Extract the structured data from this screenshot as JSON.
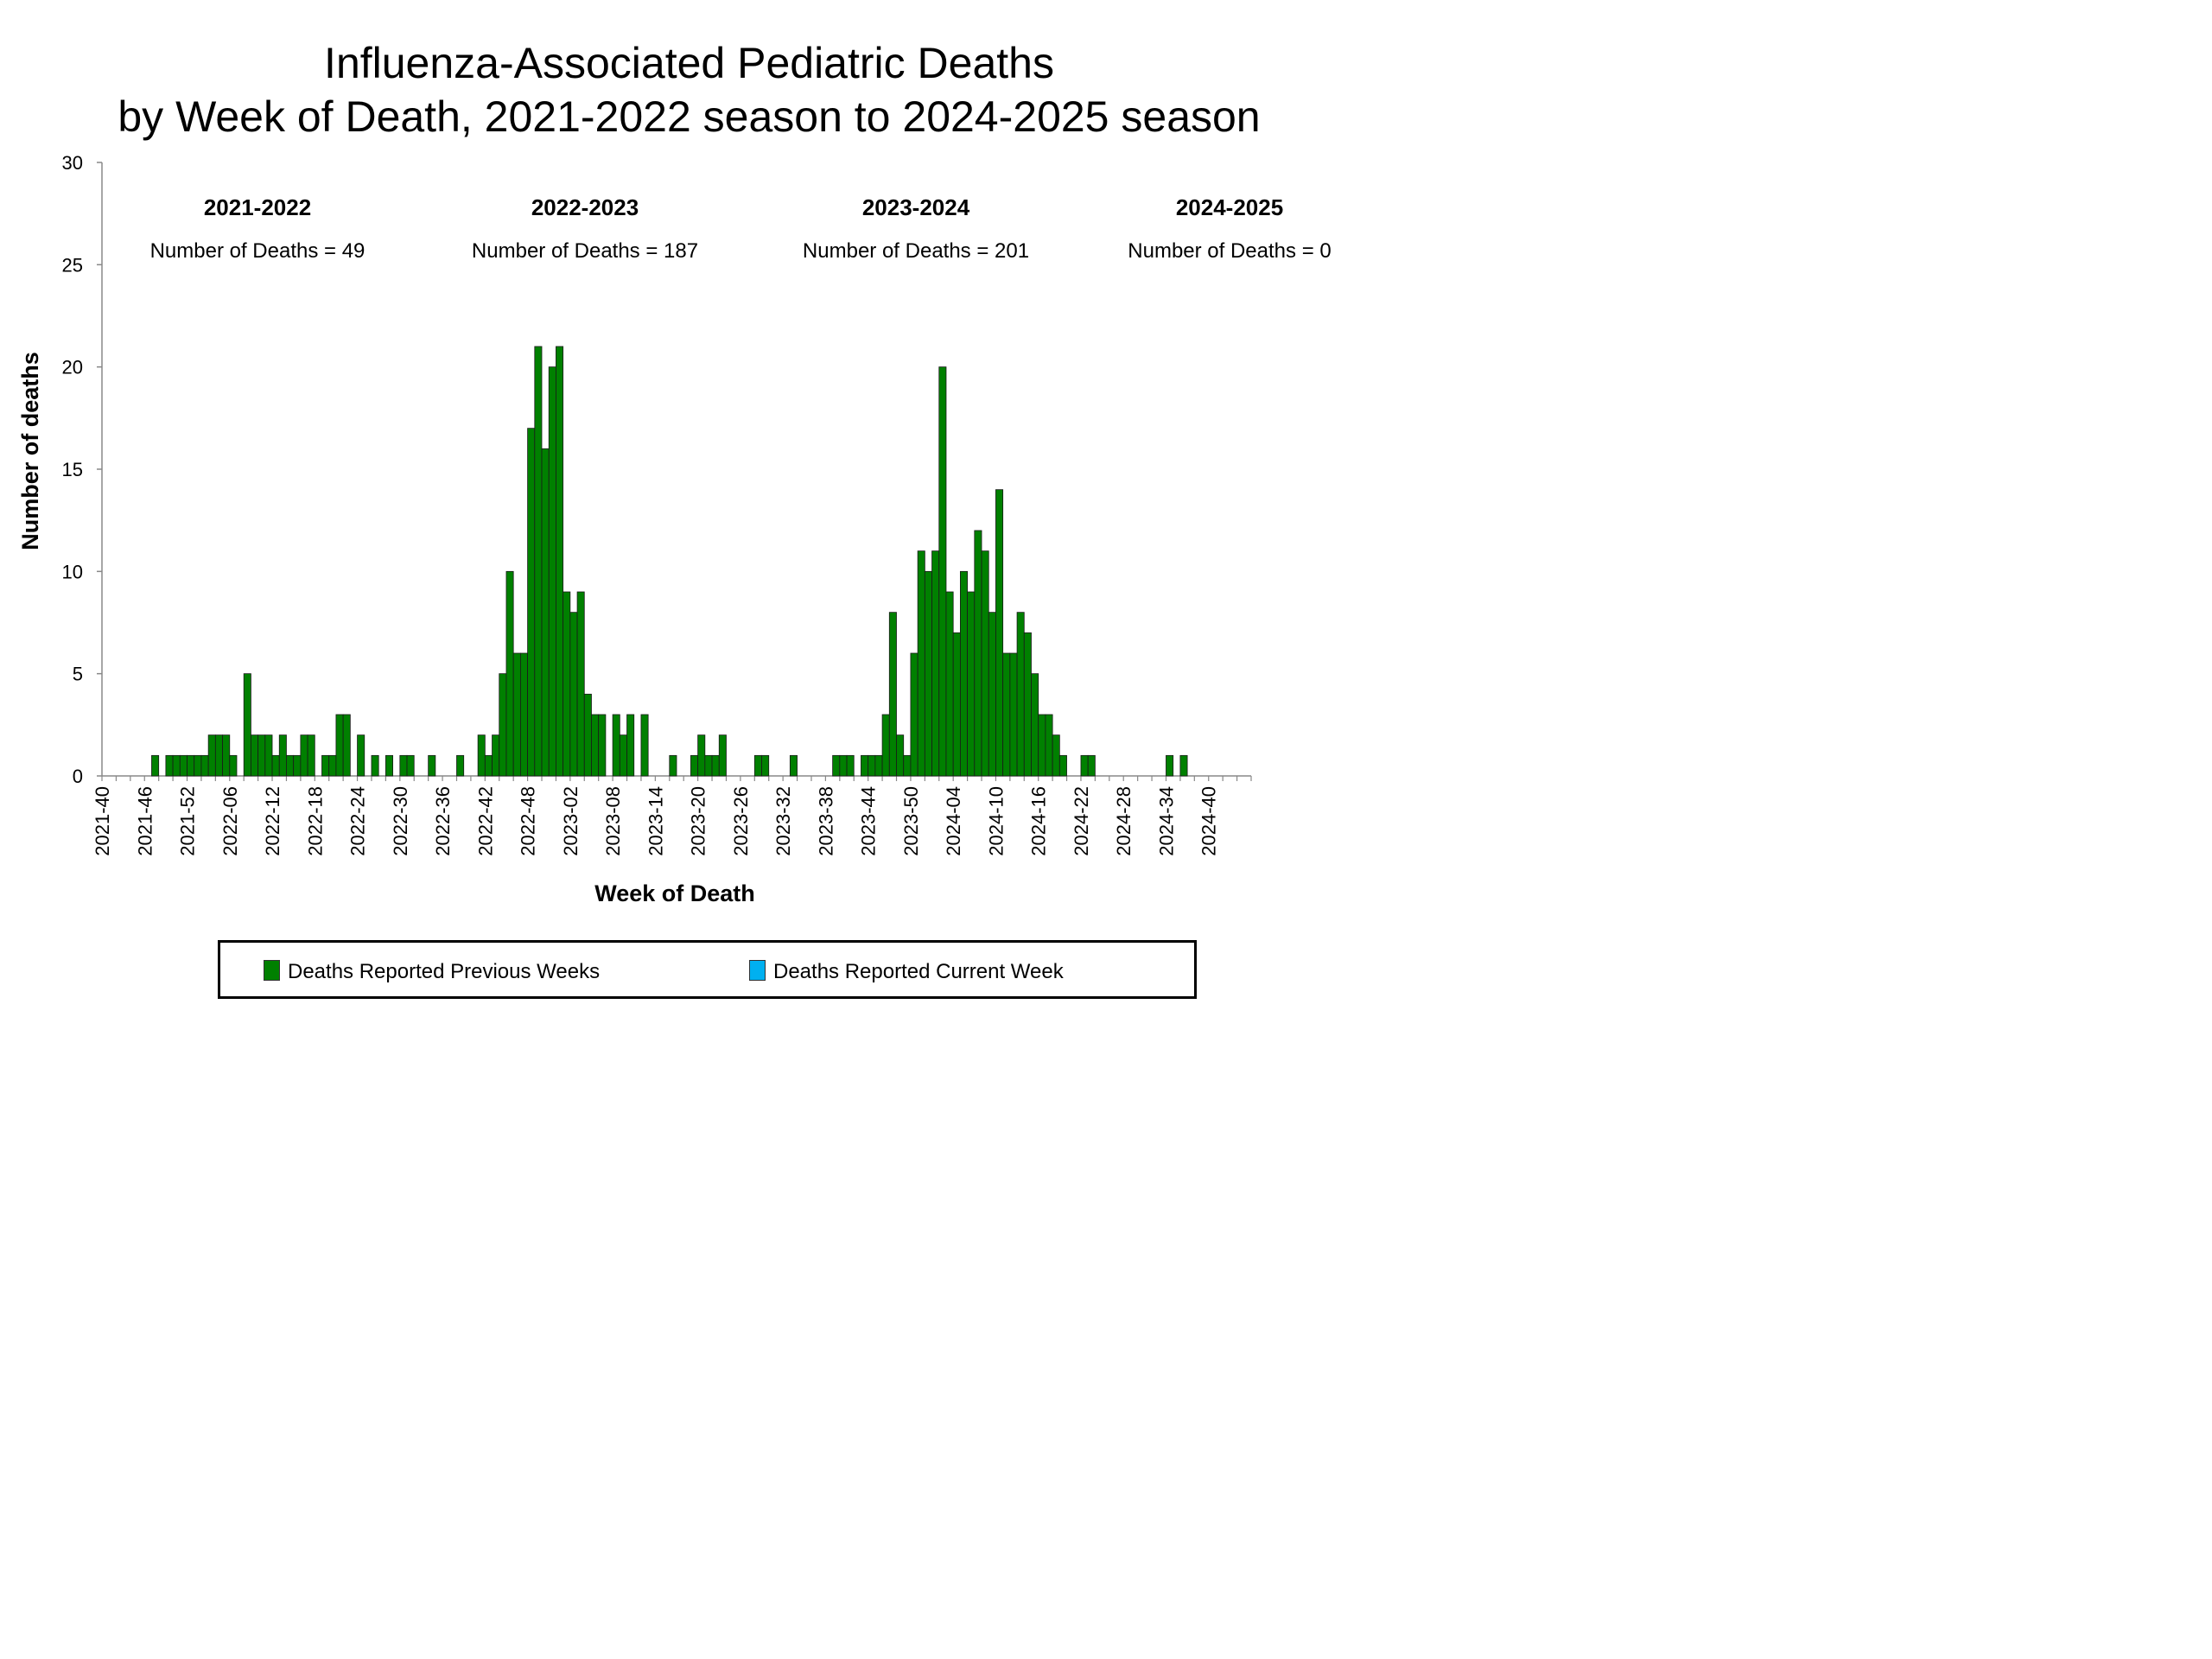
{
  "chart_data": {
    "type": "bar",
    "title": [
      "Influenza-Associated Pediatric Deaths",
      "by Week of Death, 2021-2022 season to 2024-2025 season"
    ],
    "xlabel": "Week of Death",
    "ylabel": "Number of deaths",
    "ylim": [
      0,
      30
    ],
    "y_ticks": [
      0,
      5,
      10,
      15,
      20,
      25,
      30
    ],
    "x_tick_labels": [
      "2021-40",
      "2021-46",
      "2021-52",
      "2022-06",
      "2022-12",
      "2022-18",
      "2022-24",
      "2022-30",
      "2022-36",
      "2022-42",
      "2022-48",
      "2023-02",
      "2023-08",
      "2023-14",
      "2023-20",
      "2023-26",
      "2023-32",
      "2023-38",
      "2023-44",
      "2023-50",
      "2024-04",
      "2024-10",
      "2024-16",
      "2024-22",
      "2024-28",
      "2024-34",
      "2024-40"
    ],
    "x_tick_label_every": 6,
    "seasons": [
      {
        "label": "2021-2022",
        "count_text": "Number of Deaths = 49"
      },
      {
        "label": "2022-2023",
        "count_text": "Number of Deaths = 187"
      },
      {
        "label": "2023-2024",
        "count_text": "Number of Deaths = 201"
      },
      {
        "label": "2024-2025",
        "count_text": "Number of Deaths = 0"
      }
    ],
    "series": [
      {
        "name": "Deaths Reported Previous Weeks",
        "color": "#008000",
        "values": [
          0,
          0,
          0,
          0,
          0,
          0,
          0,
          1,
          0,
          1,
          1,
          1,
          1,
          1,
          1,
          2,
          2,
          2,
          1,
          0,
          5,
          2,
          2,
          2,
          1,
          2,
          1,
          1,
          2,
          2,
          0,
          1,
          1,
          3,
          3,
          0,
          2,
          0,
          1,
          0,
          1,
          0,
          1,
          1,
          0,
          0,
          1,
          0,
          0,
          0,
          1,
          0,
          0,
          2,
          1,
          2,
          5,
          10,
          6,
          6,
          17,
          21,
          16,
          20,
          21,
          9,
          8,
          9,
          4,
          3,
          3,
          0,
          3,
          2,
          3,
          0,
          3,
          0,
          0,
          0,
          1,
          0,
          0,
          1,
          2,
          1,
          1,
          2,
          0,
          0,
          0,
          0,
          1,
          1,
          0,
          0,
          0,
          1,
          0,
          0,
          0,
          0,
          0,
          1,
          1,
          1,
          0,
          1,
          1,
          1,
          3,
          8,
          2,
          1,
          6,
          11,
          10,
          11,
          20,
          9,
          7,
          10,
          9,
          12,
          11,
          8,
          14,
          6,
          6,
          8,
          7,
          5,
          3,
          3,
          2,
          1,
          0,
          0,
          1,
          1,
          0,
          0,
          0,
          0,
          0,
          0,
          0,
          0,
          0,
          0,
          1,
          0,
          1,
          0,
          0,
          0,
          0,
          0,
          0,
          0,
          0,
          0
        ]
      },
      {
        "name": "Deaths Reported Current Week",
        "color": "#00b0f0",
        "values": []
      }
    ],
    "grid": false,
    "legend_position": "bottom"
  }
}
